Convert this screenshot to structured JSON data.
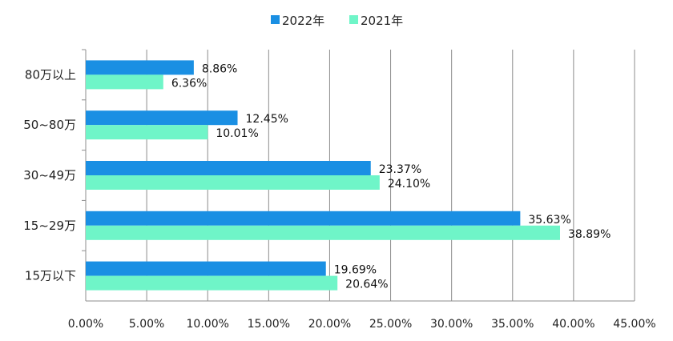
{
  "chart_data": {
    "type": "bar",
    "orientation": "horizontal",
    "categories": [
      "15万以下",
      "15~29万",
      "30~49万",
      "50~80万",
      "80万以上"
    ],
    "series": [
      {
        "name": "2022年",
        "color": "#1a8fe3",
        "values": [
          19.69,
          35.63,
          23.37,
          12.45,
          8.86
        ],
        "labels": [
          "19.69%",
          "35.63%",
          "23.37%",
          "12.45%",
          "8.86%"
        ]
      },
      {
        "name": "2021年",
        "color": "#6ff5c8",
        "values": [
          20.64,
          38.89,
          24.1,
          10.01,
          6.36
        ],
        "labels": [
          "20.64%",
          "38.89%",
          "24.10%",
          "10.01%",
          "6.36%"
        ]
      }
    ],
    "xlim": [
      0,
      45
    ],
    "xticks": [
      0,
      5,
      10,
      15,
      20,
      25,
      30,
      35,
      40,
      45
    ],
    "xtick_labels": [
      "0.00%",
      "5.00%",
      "10.00%",
      "15.00%",
      "20.00%",
      "25.00%",
      "30.00%",
      "35.00%",
      "40.00%",
      "45.00%"
    ],
    "grid": "vertical",
    "legend": "top-center"
  }
}
